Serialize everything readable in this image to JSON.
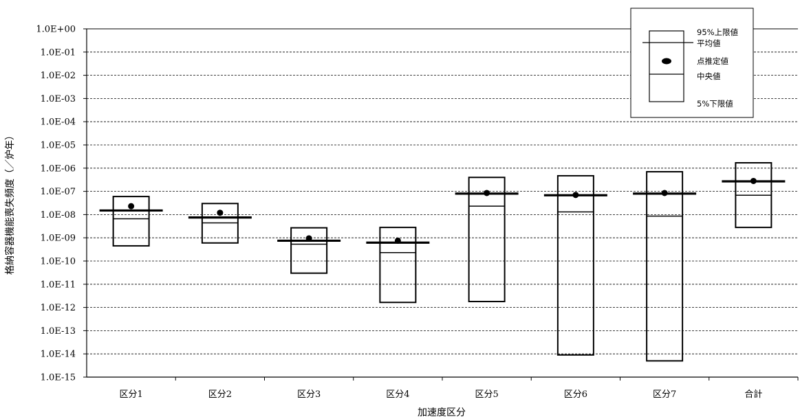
{
  "chart_data": {
    "type": "box",
    "scale": "log",
    "ylim": [
      1e-15,
      1
    ],
    "y_ticks": [
      "1.0E+00",
      "1.0E-01",
      "1.0E-02",
      "1.0E-03",
      "1.0E-04",
      "1.0E-05",
      "1.0E-06",
      "1.0E-07",
      "1.0E-08",
      "1.0E-09",
      "1.0E-10",
      "1.0E-11",
      "1.0E-12",
      "1.0E-13",
      "1.0E-14",
      "1.0E-15"
    ],
    "xlabel": "加速度区分",
    "ylabel": "格納容器機能喪失頻度（／炉年）",
    "grid": "horizontal dashed",
    "legend_position": "top-right",
    "categories": [
      "区分1",
      "区分2",
      "区分3",
      "区分4",
      "区分5",
      "区分6",
      "区分7",
      "合計"
    ],
    "series": [
      {
        "name": "95%上限値",
        "values": [
          6e-08,
          3e-08,
          2.7e-09,
          2.8e-09,
          4e-07,
          4.7e-07,
          7e-07,
          1.7e-06
        ]
      },
      {
        "name": "平均値",
        "values": [
          1.5e-08,
          7.5e-09,
          7.5e-10,
          6.2e-10,
          8e-08,
          6.8e-08,
          8e-08,
          2.7e-07
        ]
      },
      {
        "name": "点推定値",
        "values": [
          2.3e-08,
          1.2e-08,
          9.5e-10,
          7.5e-10,
          8.5e-08,
          7e-08,
          8.5e-08,
          2.8e-07
        ]
      },
      {
        "name": "中央値",
        "values": [
          6.6e-09,
          4.4e-09,
          5.3e-10,
          2.3e-10,
          2.3e-08,
          1.3e-08,
          8.6e-09,
          6.8e-08
        ]
      },
      {
        "name": "5%下限値",
        "values": [
          4.5e-10,
          6e-10,
          3e-11,
          1.65e-12,
          1.8e-12,
          9e-15,
          5e-15,
          2.8e-09
        ]
      }
    ]
  },
  "legend": {
    "upper": "95%上限値",
    "mean": "平均値",
    "point": "点推定値",
    "median": "中央値",
    "lower": "5%下限値"
  }
}
